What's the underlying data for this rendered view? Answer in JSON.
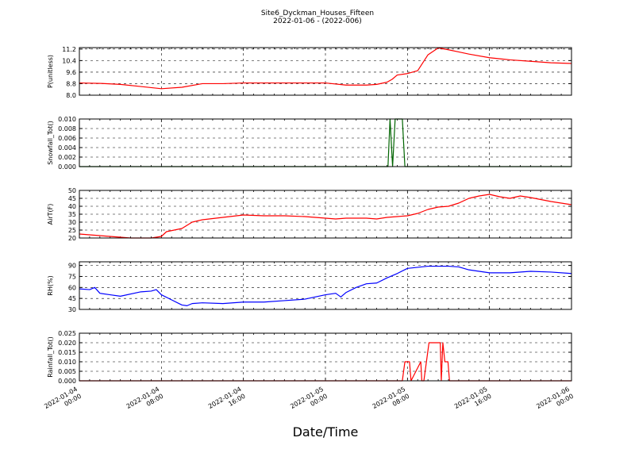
{
  "header": {
    "title": "Site6_Dyckman_Houses_Fifteen",
    "subtitle": "2022-01-06 - (2022-006)"
  },
  "xlabel": "Date/Time",
  "x_tick_labels": [
    [
      "2022-01-04",
      "00:00"
    ],
    [
      "2022-01-04",
      "08:00"
    ],
    [
      "2022-01-04",
      "16:00"
    ],
    [
      "2022-01-05",
      "00:00"
    ],
    [
      "2022-01-05",
      "08:00"
    ],
    [
      "2022-01-05",
      "16:00"
    ],
    [
      "2022-01-06",
      "00:00"
    ]
  ],
  "chart_data": [
    {
      "type": "line",
      "ylabel": "P(unitless)",
      "ylim": [
        8.0,
        11.3
      ],
      "yticks": [
        "8.0",
        "8.8",
        "9.6",
        "10.4",
        "11.2"
      ],
      "ytick_values": [
        8.0,
        8.8,
        9.6,
        10.4,
        11.2
      ],
      "color": "#ff0000",
      "grid": true,
      "x_hours": [
        0,
        2,
        4,
        6,
        8,
        10,
        12,
        14,
        16,
        18,
        20,
        22,
        24,
        26,
        28,
        29,
        30,
        30.5,
        31,
        32,
        33,
        34,
        35,
        36,
        37,
        38,
        40,
        42,
        44,
        46,
        48
      ],
      "y": [
        8.85,
        8.82,
        8.75,
        8.6,
        8.45,
        8.55,
        8.8,
        8.8,
        8.85,
        8.85,
        8.85,
        8.85,
        8.85,
        8.7,
        8.7,
        8.75,
        8.9,
        9.1,
        9.4,
        9.5,
        9.7,
        10.8,
        11.28,
        11.15,
        11.0,
        10.85,
        10.6,
        10.45,
        10.35,
        10.25,
        10.2
      ]
    },
    {
      "type": "line",
      "ylabel": "Snowfall_Tot()",
      "ylim": [
        0.0,
        0.01
      ],
      "yticks": [
        "0.000",
        "0.002",
        "0.004",
        "0.006",
        "0.008",
        "0.010"
      ],
      "ytick_values": [
        0.0,
        0.002,
        0.004,
        0.006,
        0.008,
        0.01
      ],
      "color": "#006400",
      "grid": true,
      "x_hours": [
        0,
        30.1,
        30.3,
        30.55,
        30.8,
        31.5,
        31.75,
        32.0,
        48
      ],
      "y": [
        0,
        0,
        0.01,
        0,
        0.01,
        0.01,
        0,
        0,
        0
      ]
    },
    {
      "type": "line",
      "ylabel": "AirT(F)",
      "ylim": [
        20,
        50
      ],
      "yticks": [
        "20",
        "25",
        "30",
        "35",
        "40",
        "45",
        "50"
      ],
      "ytick_values": [
        20,
        25,
        30,
        35,
        40,
        45,
        50
      ],
      "color": "#ff0000",
      "grid": true,
      "x_hours": [
        0,
        2,
        4,
        5,
        7,
        8,
        8.5,
        10,
        11,
        12,
        14,
        16,
        18,
        20,
        22,
        24,
        25,
        26,
        28,
        29,
        30,
        31,
        32,
        33,
        34,
        35,
        36,
        37,
        38,
        39,
        40,
        41,
        42,
        43,
        44,
        46,
        48
      ],
      "y": [
        22.5,
        21.5,
        20.5,
        20,
        20,
        21,
        24,
        26,
        30,
        31.5,
        33,
        34.5,
        34,
        34,
        33.5,
        32.5,
        32,
        32.5,
        32.5,
        32,
        33,
        33.5,
        34,
        35.5,
        38,
        39.5,
        40,
        42,
        45,
        46.5,
        47.5,
        46,
        45,
        46.5,
        45.5,
        43,
        41
      ]
    },
    {
      "type": "line",
      "ylabel": "RH(%)",
      "ylim": [
        30,
        95
      ],
      "yticks": [
        "30",
        "45",
        "60",
        "75",
        "90"
      ],
      "ytick_values": [
        30,
        45,
        60,
        75,
        90
      ],
      "color": "#0000ff",
      "grid": true,
      "x_hours": [
        0,
        1,
        1.5,
        2,
        3,
        4,
        6,
        7,
        7.5,
        8,
        9,
        10,
        10.5,
        11,
        12,
        14,
        16,
        18,
        20,
        22,
        24,
        25,
        25.5,
        26,
        27,
        28,
        29,
        30,
        31,
        32,
        34,
        36,
        37,
        38,
        40,
        42,
        44,
        46,
        48
      ],
      "y": [
        58,
        57,
        60,
        52,
        50,
        48,
        54,
        55,
        57,
        50,
        43,
        36,
        35,
        38,
        39,
        38,
        40,
        40,
        42,
        44,
        50,
        52,
        47,
        53,
        60,
        65,
        66,
        73,
        79,
        86,
        89,
        89,
        88,
        84,
        80,
        80,
        82,
        81,
        79
      ]
    },
    {
      "type": "line",
      "ylabel": "Rainfall_Tot()",
      "ylim": [
        0.0,
        0.025
      ],
      "yticks": [
        "0.000",
        "0.005",
        "0.010",
        "0.015",
        "0.020",
        "0.025"
      ],
      "ytick_values": [
        0.0,
        0.005,
        0.01,
        0.015,
        0.02,
        0.025
      ],
      "color": "#ff0000",
      "grid": true,
      "x_hours": [
        0,
        31.5,
        31.75,
        32.2,
        32.35,
        33.3,
        33.4,
        33.6,
        34.1,
        34.6,
        35.2,
        35.3,
        35.45,
        35.65,
        35.95,
        36.1,
        48
      ],
      "y": [
        0,
        0,
        0.01,
        0.01,
        0,
        0.01,
        0,
        0,
        0.02,
        0.02,
        0.02,
        0,
        0.02,
        0.01,
        0.01,
        0,
        0
      ]
    }
  ]
}
